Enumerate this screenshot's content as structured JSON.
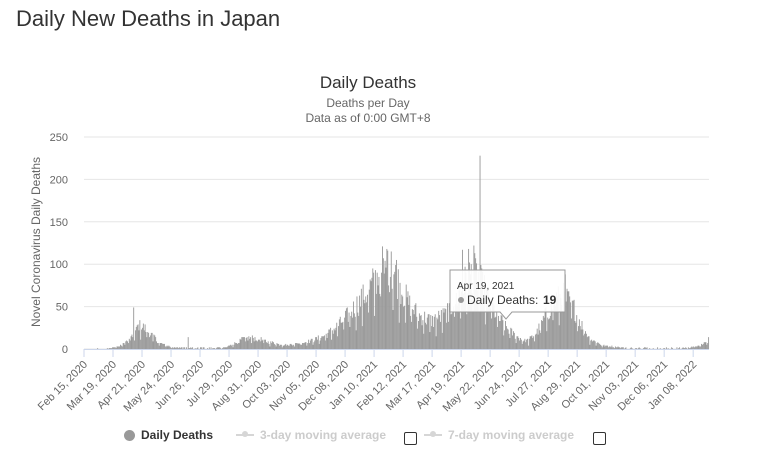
{
  "page": {
    "title": "Daily New Deaths in Japan"
  },
  "chart_data": {
    "type": "bar",
    "title": "Daily Deaths",
    "subtitle_lines": [
      "Deaths per Day",
      "Data as of 0:00 GMT+8"
    ],
    "ylabel": "Novel Coronavirus Daily Deaths",
    "xlabel": "",
    "ylim": [
      0,
      250
    ],
    "yticks": [
      0,
      50,
      100,
      150,
      200,
      250
    ],
    "grid": true,
    "start_date": "Feb 15, 2020",
    "num_days": 711,
    "x_tick_labels": [
      "Feb 15, 2020",
      "Mar 19, 2020",
      "Apr 21, 2020",
      "May 24, 2020",
      "Jun 26, 2020",
      "Jul 29, 2020",
      "Aug 31, 2020",
      "Oct 03, 2020",
      "Nov 05, 2020",
      "Dec 08, 2020",
      "Jan 10, 2021",
      "Feb 12, 2021",
      "Mar 17, 2021",
      "Apr 19, 2021",
      "May 22, 2021",
      "Jun 24, 2021",
      "Jul 27, 2021",
      "Aug 29, 2021",
      "Oct 01, 2021",
      "Nov 03, 2021",
      "Dec 06, 2021",
      "Jan 08, 2022"
    ],
    "x_tick_interval_days": 33,
    "series": [
      {
        "name": "Daily Deaths",
        "color": "#999999",
        "keypoints": [
          [
            0,
            0
          ],
          [
            25,
            1
          ],
          [
            40,
            3
          ],
          [
            55,
            14
          ],
          [
            62,
            28
          ],
          [
            68,
            25
          ],
          [
            75,
            18
          ],
          [
            85,
            7
          ],
          [
            100,
            2
          ],
          [
            135,
            1
          ],
          [
            160,
            2
          ],
          [
            170,
            6
          ],
          [
            180,
            12
          ],
          [
            195,
            13
          ],
          [
            210,
            8
          ],
          [
            225,
            5
          ],
          [
            240,
            6
          ],
          [
            255,
            9
          ],
          [
            270,
            14
          ],
          [
            285,
            24
          ],
          [
            300,
            40
          ],
          [
            315,
            58
          ],
          [
            325,
            72
          ],
          [
            335,
            88
          ],
          [
            345,
            93
          ],
          [
            352,
            90
          ],
          [
            360,
            72
          ],
          [
            370,
            52
          ],
          [
            380,
            40
          ],
          [
            395,
            33
          ],
          [
            410,
            40
          ],
          [
            425,
            62
          ],
          [
            435,
            82
          ],
          [
            442,
            92
          ],
          [
            450,
            80
          ],
          [
            460,
            58
          ],
          [
            470,
            38
          ],
          [
            480,
            25
          ],
          [
            490,
            16
          ],
          [
            500,
            10
          ],
          [
            505,
            10
          ],
          [
            515,
            20
          ],
          [
            525,
            40
          ],
          [
            535,
            58
          ],
          [
            545,
            62
          ],
          [
            555,
            52
          ],
          [
            565,
            30
          ],
          [
            575,
            12
          ],
          [
            590,
            4
          ],
          [
            620,
            1
          ],
          [
            670,
            1
          ],
          [
            690,
            2
          ],
          [
            700,
            4
          ],
          [
            711,
            10
          ]
        ],
        "spikes": [
          [
            56,
            49
          ],
          [
            60,
            28
          ],
          [
            450,
            228
          ],
          [
            443,
            122
          ],
          [
            430,
            117
          ],
          [
            437,
            118
          ],
          [
            339,
            121
          ],
          [
            344,
            118
          ],
          [
            349,
            115
          ],
          [
            355,
            105
          ],
          [
            547,
            88
          ],
          [
            80,
            16
          ],
          [
            118,
            14
          ],
          [
            710,
            14
          ]
        ]
      },
      {
        "name": "3-day moving average",
        "enabled": false,
        "color": "#d6d6d6"
      },
      {
        "name": "7-day moving average",
        "enabled": false,
        "color": "#d6d6d6"
      }
    ],
    "tooltip": {
      "date": "Apr 19, 2021",
      "label": "Daily Deaths:",
      "value": "19"
    }
  }
}
